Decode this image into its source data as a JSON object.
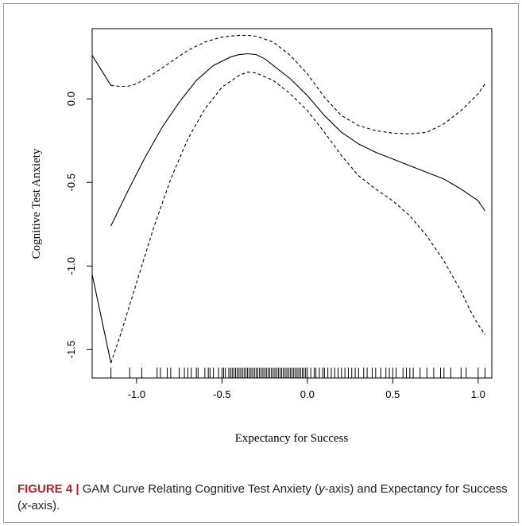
{
  "caption": {
    "figure_label": "FIGURE 4 |",
    "text_part1": " GAM Curve Relating Cognitive Test Anxiety (",
    "y_var": "y",
    "text_part2": "-axis) and Expectancy for Success (",
    "x_var": "x",
    "text_part3": "-axis)."
  },
  "chart_data": {
    "type": "line",
    "title": "",
    "xlabel": "Expectancy for Success",
    "ylabel": "Cognitive Test Anxiety",
    "xlim": [
      -1.26,
      1.08
    ],
    "ylim": [
      -1.67,
      0.42
    ],
    "x_ticks": [
      -1.0,
      -0.5,
      0.0,
      0.5,
      1.0
    ],
    "x_tick_labels": [
      "-1.0",
      "-0.5",
      "0.0",
      "0.5",
      "1.0"
    ],
    "y_ticks": [
      -1.5,
      -1.0,
      -0.5,
      0.0
    ],
    "y_tick_labels": [
      "-1.5",
      "-1.0",
      "-0.5",
      "0.0"
    ],
    "grid": false,
    "legend": "none",
    "series": [
      {
        "style": "solid",
        "x": [
          -1.15,
          -1.05,
          -0.95,
          -0.85,
          -0.75,
          -0.65,
          -0.55,
          -0.45,
          -0.4,
          -0.35,
          -0.3,
          -0.25,
          -0.2,
          -0.1,
          0.0,
          0.1,
          0.2,
          0.3,
          0.4,
          0.5,
          0.6,
          0.7,
          0.8,
          0.9,
          1.0,
          1.04
        ],
        "y": [
          -0.76,
          -0.55,
          -0.35,
          -0.17,
          -0.02,
          0.11,
          0.2,
          0.25,
          0.265,
          0.27,
          0.265,
          0.24,
          0.2,
          0.12,
          0.02,
          -0.1,
          -0.2,
          -0.27,
          -0.32,
          -0.36,
          -0.4,
          -0.44,
          -0.48,
          -0.54,
          -0.61,
          -0.67
        ]
      },
      {
        "style": "dashed",
        "x": [
          -1.15,
          -1.1,
          -1.05,
          -1.0,
          -0.9,
          -0.8,
          -0.7,
          -0.6,
          -0.5,
          -0.4,
          -0.35,
          -0.3,
          -0.2,
          -0.1,
          0.0,
          0.1,
          0.2,
          0.3,
          0.4,
          0.5,
          0.6,
          0.7,
          0.8,
          0.9,
          0.95,
          1.0,
          1.04
        ],
        "y": [
          0.08,
          0.075,
          0.075,
          0.09,
          0.15,
          0.22,
          0.29,
          0.34,
          0.37,
          0.38,
          0.38,
          0.375,
          0.34,
          0.26,
          0.15,
          0.01,
          -0.1,
          -0.16,
          -0.19,
          -0.205,
          -0.21,
          -0.2,
          -0.15,
          -0.07,
          -0.02,
          0.03,
          0.09
        ]
      },
      {
        "style": "dashed",
        "x": [
          -1.15,
          -1.1,
          -1.0,
          -0.9,
          -0.8,
          -0.7,
          -0.6,
          -0.5,
          -0.4,
          -0.35,
          -0.3,
          -0.2,
          -0.1,
          0.0,
          0.1,
          0.2,
          0.3,
          0.4,
          0.5,
          0.6,
          0.7,
          0.8,
          0.9,
          0.95,
          1.0,
          1.04
        ],
        "y": [
          -1.58,
          -1.43,
          -1.1,
          -0.77,
          -0.48,
          -0.24,
          -0.06,
          0.07,
          0.14,
          0.16,
          0.155,
          0.11,
          0.03,
          -0.07,
          -0.2,
          -0.34,
          -0.46,
          -0.54,
          -0.61,
          -0.7,
          -0.82,
          -0.97,
          -1.15,
          -1.26,
          -1.35,
          -1.41
        ]
      },
      {
        "style": "solid",
        "x": [
          -1.26,
          -1.15
        ],
        "y": [
          -1.05,
          -1.58
        ]
      },
      {
        "style": "solid",
        "x": [
          -1.26,
          -1.15
        ],
        "y": [
          0.26,
          0.08
        ]
      }
    ],
    "rug": [
      -1.15,
      -1.04,
      -0.97,
      -0.88,
      -0.86,
      -0.82,
      -0.8,
      -0.75,
      -0.72,
      -0.7,
      -0.68,
      -0.65,
      -0.64,
      -0.6,
      -0.58,
      -0.57,
      -0.55,
      -0.52,
      -0.5,
      -0.49,
      -0.48,
      -0.46,
      -0.45,
      -0.44,
      -0.43,
      -0.42,
      -0.41,
      -0.4,
      -0.39,
      -0.38,
      -0.37,
      -0.36,
      -0.35,
      -0.34,
      -0.33,
      -0.32,
      -0.31,
      -0.3,
      -0.29,
      -0.28,
      -0.27,
      -0.26,
      -0.25,
      -0.24,
      -0.23,
      -0.22,
      -0.21,
      -0.2,
      -0.19,
      -0.18,
      -0.17,
      -0.16,
      -0.15,
      -0.14,
      -0.13,
      -0.12,
      -0.11,
      -0.1,
      -0.09,
      -0.08,
      -0.07,
      -0.06,
      -0.05,
      -0.04,
      -0.03,
      -0.02,
      -0.01,
      0.0,
      0.02,
      0.04,
      0.05,
      0.07,
      0.09,
      0.1,
      0.12,
      0.14,
      0.16,
      0.18,
      0.2,
      0.22,
      0.24,
      0.26,
      0.28,
      0.3,
      0.33,
      0.35,
      0.38,
      0.4,
      0.43,
      0.46,
      0.48,
      0.5,
      0.52,
      0.56,
      0.58,
      0.6,
      0.62,
      0.66,
      0.7,
      0.74,
      0.78,
      0.8,
      0.84,
      0.9,
      0.93,
      1.0,
      1.04
    ]
  }
}
